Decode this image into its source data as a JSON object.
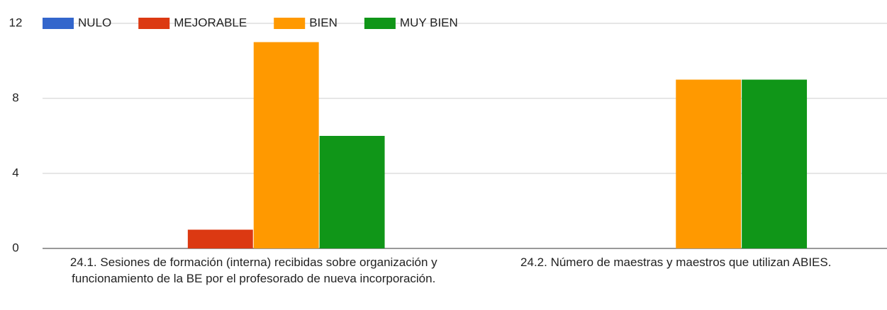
{
  "chart_data": {
    "type": "bar",
    "categories": [
      "24.1. Sesiones de formación (interna) recibidas sobre organización y funcionamiento de la BE por el profesorado de nueva incorporación.",
      "24.2. Número de maestras y maestros que utilizan ABIES."
    ],
    "series": [
      {
        "name": "NULO",
        "color": "#3366cc",
        "values": [
          0,
          0
        ]
      },
      {
        "name": "MEJORABLE",
        "color": "#dc3912",
        "values": [
          1,
          0
        ]
      },
      {
        "name": "BIEN",
        "color": "#ff9900",
        "values": [
          11,
          9
        ]
      },
      {
        "name": "MUY BIEN",
        "color": "#109618",
        "values": [
          6,
          9
        ]
      }
    ],
    "ylim": [
      0,
      12
    ],
    "yticks": [
      0,
      4,
      8,
      12
    ],
    "grid": true,
    "legend": "top"
  }
}
